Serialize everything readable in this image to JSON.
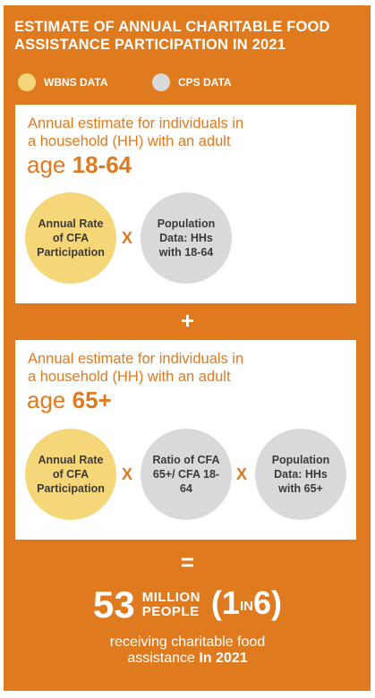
{
  "title": "ESTIMATE OF ANNUAL CHARITABLE FOOD ASSISTANCE PARTICIPATION IN 2021",
  "legend": [
    {
      "label": "WBNS DATA",
      "color": "#f5d77a",
      "icon": "circle"
    },
    {
      "label": "CPS DATA",
      "color": "#d9d9d9",
      "icon": "circle"
    }
  ],
  "card1": {
    "text_line1": "Annual estimate for individuals in",
    "text_line2": "a household (HH) with an adult",
    "age_prefix": "age ",
    "age_value": "18-64",
    "factors": [
      {
        "text": "Annual Rate of CFA Participation",
        "source": "WBNS DATA"
      },
      {
        "text": "Population Data: HHs with 18-64",
        "source": "CPS DATA"
      }
    ],
    "operator": "X"
  },
  "plus": "+",
  "card2": {
    "text_line1": "Annual estimate for individuals in",
    "text_line2": "a household (HH) with an adult",
    "age_prefix": "age ",
    "age_value": "65+",
    "factors": [
      {
        "text": "Annual Rate of CFA Participation",
        "source": "WBNS DATA"
      },
      {
        "text": "Ratio of CFA 65+/ CFA 18-64",
        "source": "CPS DATA"
      },
      {
        "text": "Population Data: HHs with 65+",
        "source": "CPS DATA"
      }
    ],
    "operator": "X"
  },
  "equals": "=",
  "result": {
    "number": "53",
    "unit_line1": "MILLION",
    "unit_line2": "PEOPLE",
    "ratio_open": "(",
    "ratio_one": "1",
    "ratio_in": "IN",
    "ratio_six": "6",
    "ratio_close": ")",
    "caption_line1": "receiving charitable food",
    "caption_line2_prefix": "assistance ",
    "caption_line2_bold": "In 2021"
  }
}
